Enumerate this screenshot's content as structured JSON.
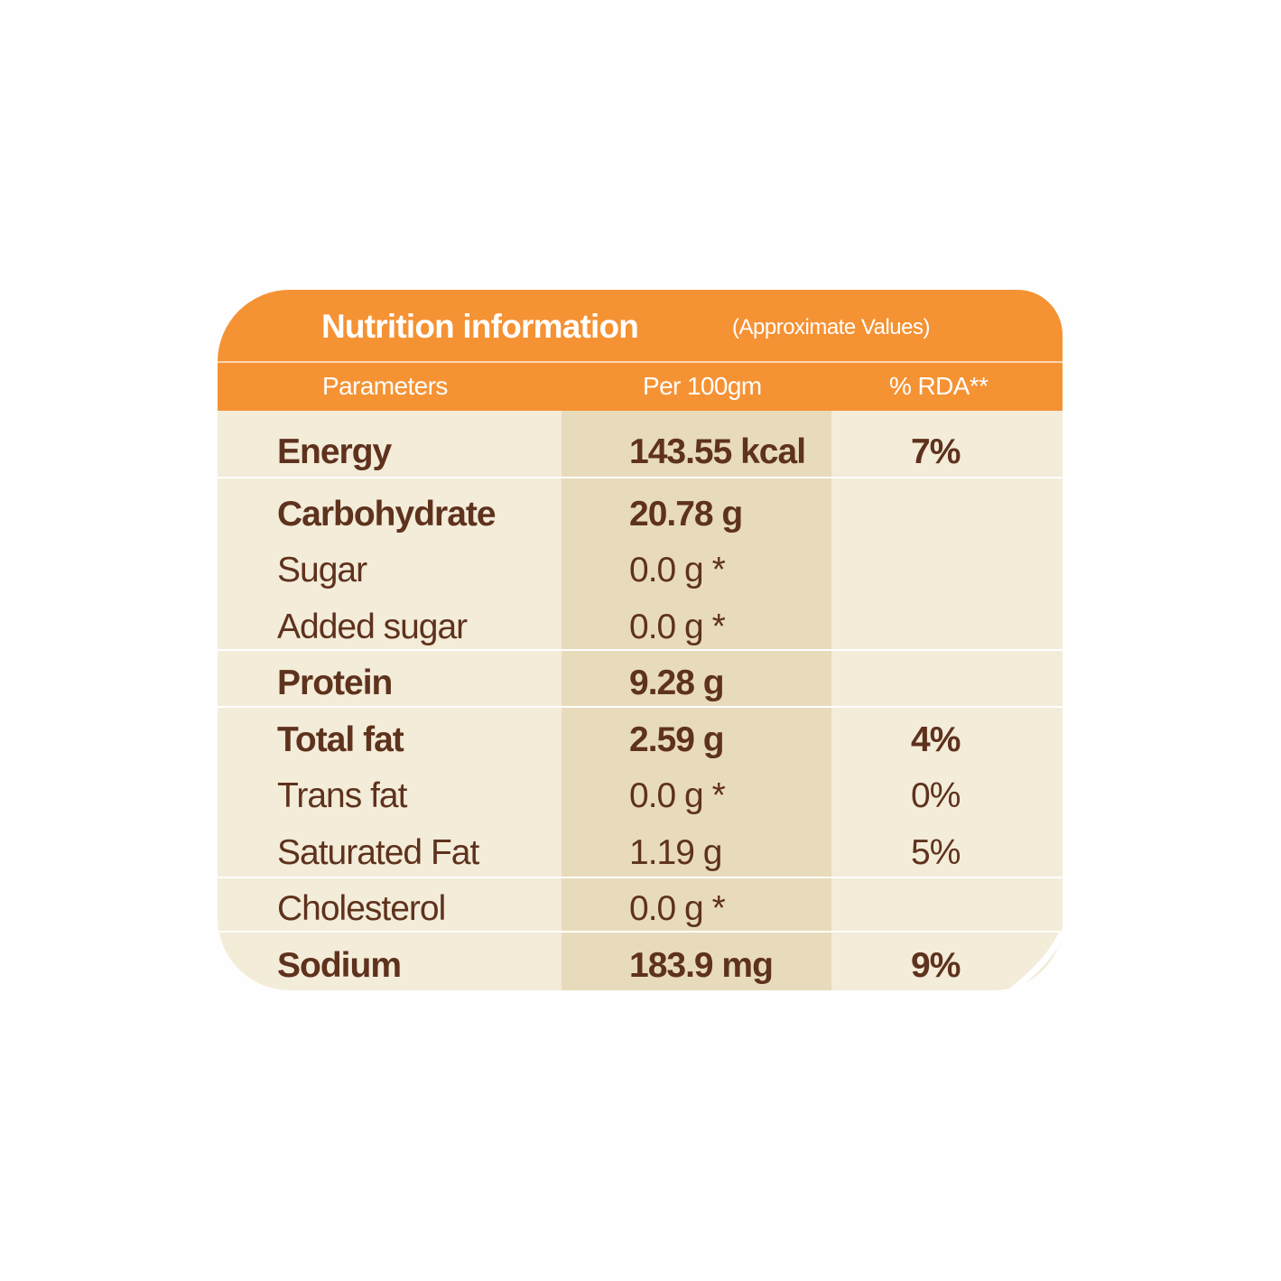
{
  "header": {
    "title": "Nutrition information",
    "note": "(Approximate Values)"
  },
  "columns": {
    "parameters": "Parameters",
    "per100": "Per 100gm",
    "rda": "% RDA**"
  },
  "rows": [
    {
      "name": "Energy",
      "value": "143.55 kcal",
      "rda": "7%",
      "bold": true
    },
    {
      "name": "Carbohydrate",
      "value": "20.78 g",
      "rda": "",
      "bold": true
    },
    {
      "name": "Sugar",
      "value": "0.0 g *",
      "rda": "",
      "bold": false
    },
    {
      "name": "Added sugar",
      "value": "0.0 g *",
      "rda": "",
      "bold": false
    },
    {
      "name": "Protein",
      "value": "9.28 g",
      "rda": "",
      "bold": true
    },
    {
      "name": "Total fat",
      "value": "2.59 g",
      "rda": "4%",
      "bold": true
    },
    {
      "name": "Trans fat",
      "value": "0.0 g *",
      "rda": "0%",
      "bold": false
    },
    {
      "name": "Saturated Fat",
      "value": "1.19 g",
      "rda": "5%",
      "bold": false
    },
    {
      "name": "Cholesterol",
      "value": "0.0 g *",
      "rda": "",
      "bold": false
    },
    {
      "name": "Sodium",
      "value": "183.9 mg",
      "rda": "9%",
      "bold": true
    }
  ],
  "colors": {
    "orange": "#f59233",
    "cream": "#f3ecd9",
    "tan": "#e8dbbb",
    "brown": "#5e321d"
  }
}
